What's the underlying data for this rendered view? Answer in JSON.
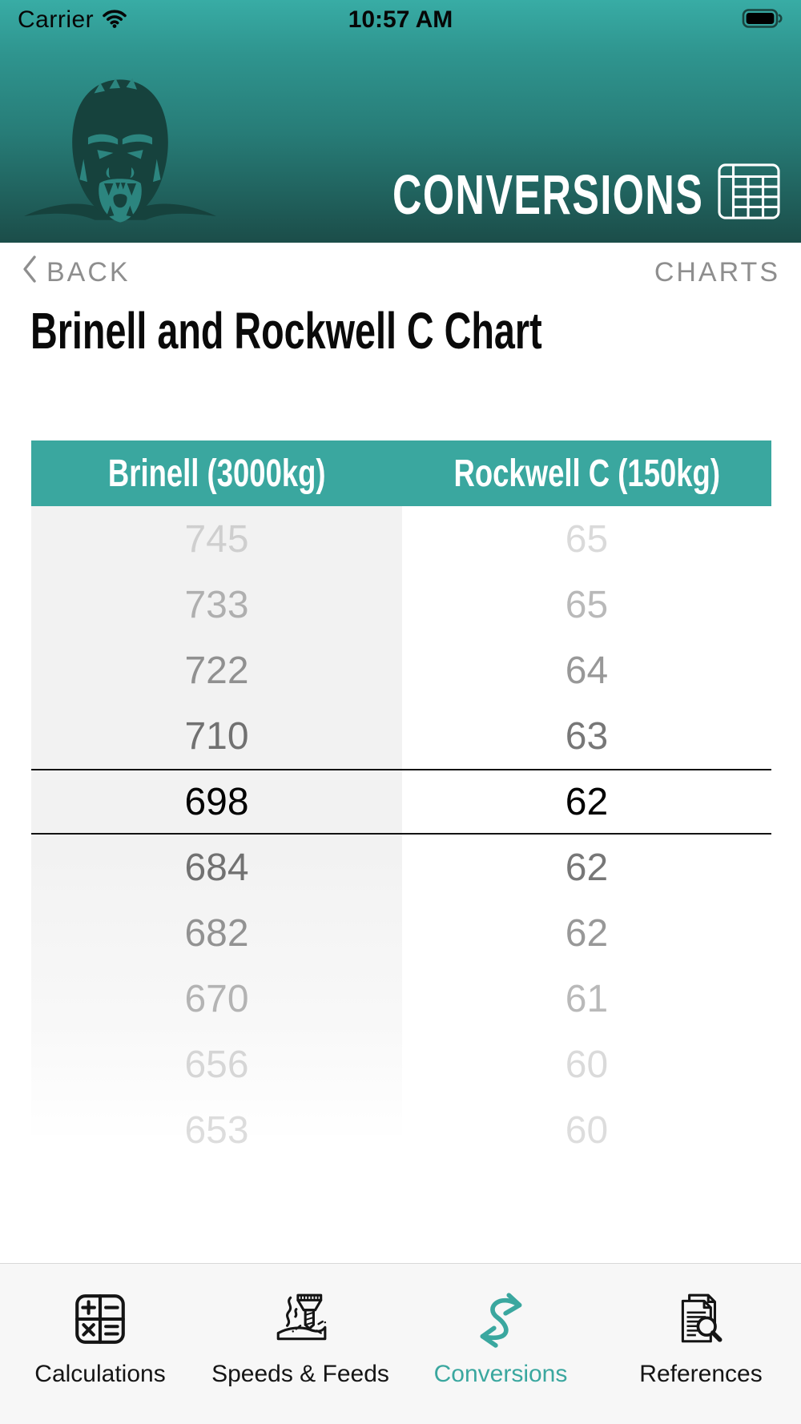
{
  "status_bar": {
    "carrier": "Carrier",
    "time": "10:57 AM",
    "battery_level": "full"
  },
  "header": {
    "app_title": "CONVERSIONS"
  },
  "nav": {
    "back_label": "BACK",
    "charts_label": "CHARTS"
  },
  "page_title": "Brinell and Rockwell C Chart",
  "chart_data": {
    "type": "table",
    "title": "Brinell and Rockwell C Chart",
    "columns": [
      "Brinell (3000kg)",
      "Rockwell C (150kg)"
    ],
    "rows": [
      [
        "745",
        "65"
      ],
      [
        "733",
        "65"
      ],
      [
        "722",
        "64"
      ],
      [
        "710",
        "63"
      ],
      [
        "698",
        "62"
      ],
      [
        "684",
        "62"
      ],
      [
        "682",
        "62"
      ],
      [
        "670",
        "61"
      ],
      [
        "656",
        "60"
      ],
      [
        "653",
        "60"
      ]
    ],
    "selected_row_index": 4,
    "selected_values": {
      "brinell": "698",
      "rockwell_c": "62"
    },
    "layout": "ios-picker-wheel"
  },
  "tab_bar": {
    "items": [
      {
        "label": "Calculations",
        "icon": "calculator-icon",
        "active": false
      },
      {
        "label": "Speeds & Feeds",
        "icon": "milling-tool-icon",
        "active": false
      },
      {
        "label": "Conversions",
        "icon": "swap-arrows-icon",
        "active": true
      },
      {
        "label": "References",
        "icon": "documents-search-icon",
        "active": false
      }
    ]
  },
  "colors": {
    "accent_teal": "#3aa79f",
    "header_gradient_top": "#38aca5",
    "header_gradient_bottom": "#1b4d49",
    "nav_gray": "#8e8e8e",
    "tab_bar_background": "#f7f7f7",
    "selected_row_line": "#131313"
  }
}
